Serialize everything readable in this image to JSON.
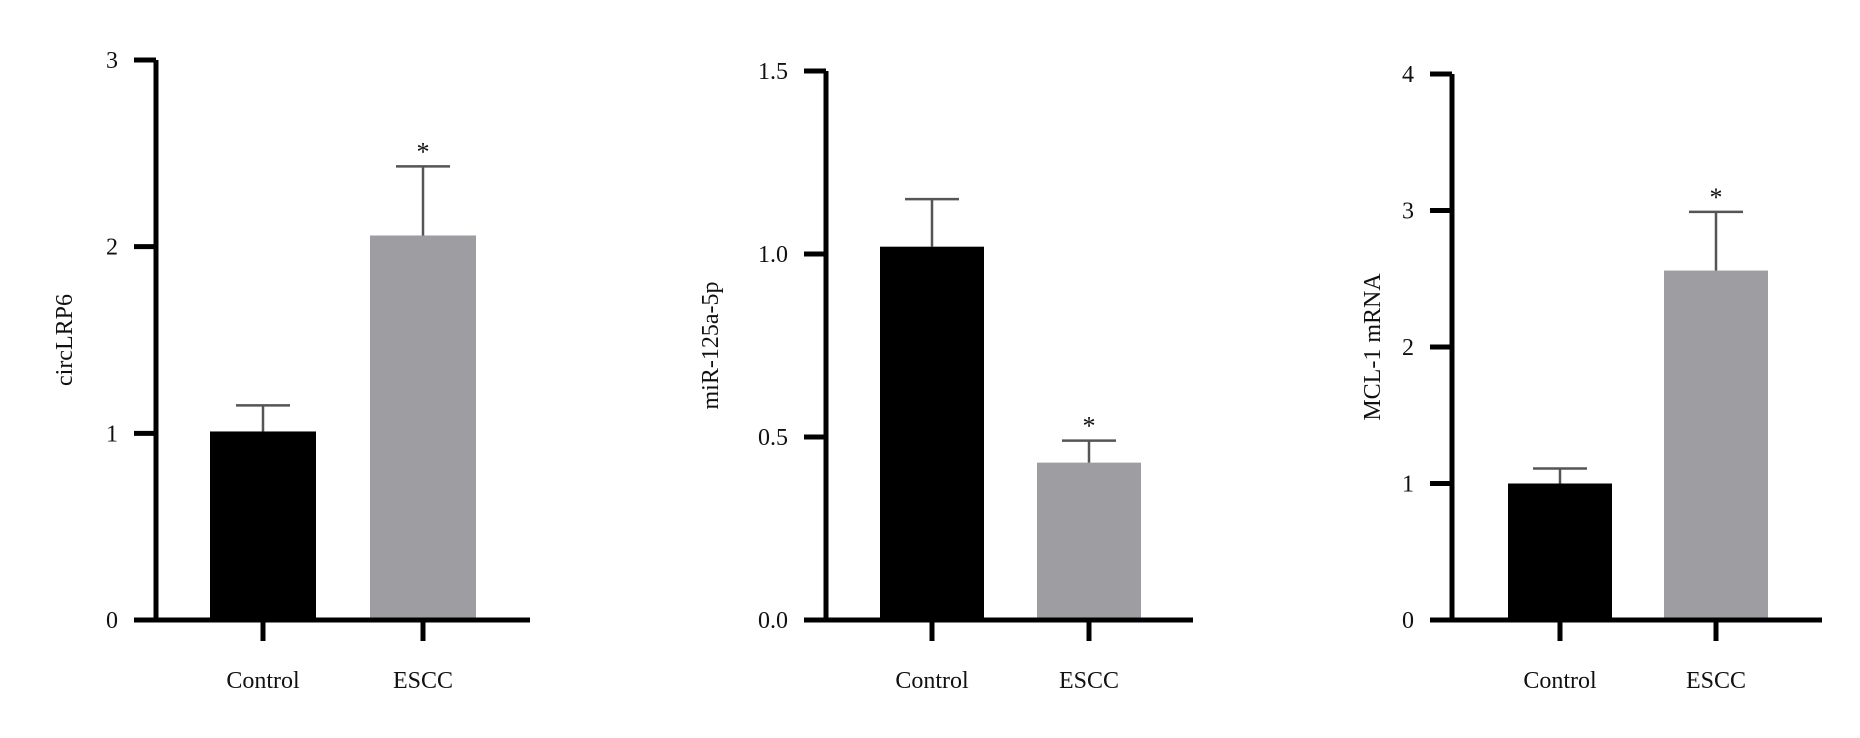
{
  "colors": {
    "control": "#000000",
    "escc": "#9e9da2",
    "axis": "#000000",
    "error_bar": "#555555"
  },
  "chart_data": [
    {
      "type": "bar",
      "categories": [
        "Control",
        "ESCC"
      ],
      "values": [
        1.01,
        2.06
      ],
      "errors": [
        0.14,
        0.37
      ],
      "significance": [
        "",
        "*"
      ],
      "ylabel": "circLRP6",
      "xlabel": "",
      "ylim": [
        0,
        3
      ],
      "yticks": [
        "0",
        "1",
        "2",
        "3"
      ],
      "ytick_values": [
        0,
        1,
        2,
        3
      ],
      "grid": false
    },
    {
      "type": "bar",
      "categories": [
        "Control",
        "ESCC"
      ],
      "values": [
        1.02,
        0.43
      ],
      "errors": [
        0.13,
        0.06
      ],
      "significance": [
        "",
        "*"
      ],
      "ylabel": "miR-125a-5p",
      "xlabel": "",
      "ylim": [
        0,
        1.5
      ],
      "yticks": [
        "0.0",
        "0.5",
        "1.0",
        "1.5"
      ],
      "ytick_values": [
        0,
        0.5,
        1.0,
        1.5
      ],
      "grid": false
    },
    {
      "type": "bar",
      "categories": [
        "Control",
        "ESCC"
      ],
      "values": [
        1.0,
        2.56
      ],
      "errors": [
        0.11,
        0.43
      ],
      "significance": [
        "",
        "*"
      ],
      "ylabel": "MCL-1 mRNA",
      "xlabel": "",
      "ylim": [
        0,
        4
      ],
      "yticks": [
        "0",
        "1",
        "2",
        "3",
        "4"
      ],
      "ytick_values": [
        0,
        1,
        2,
        3,
        4
      ],
      "grid": false
    }
  ]
}
